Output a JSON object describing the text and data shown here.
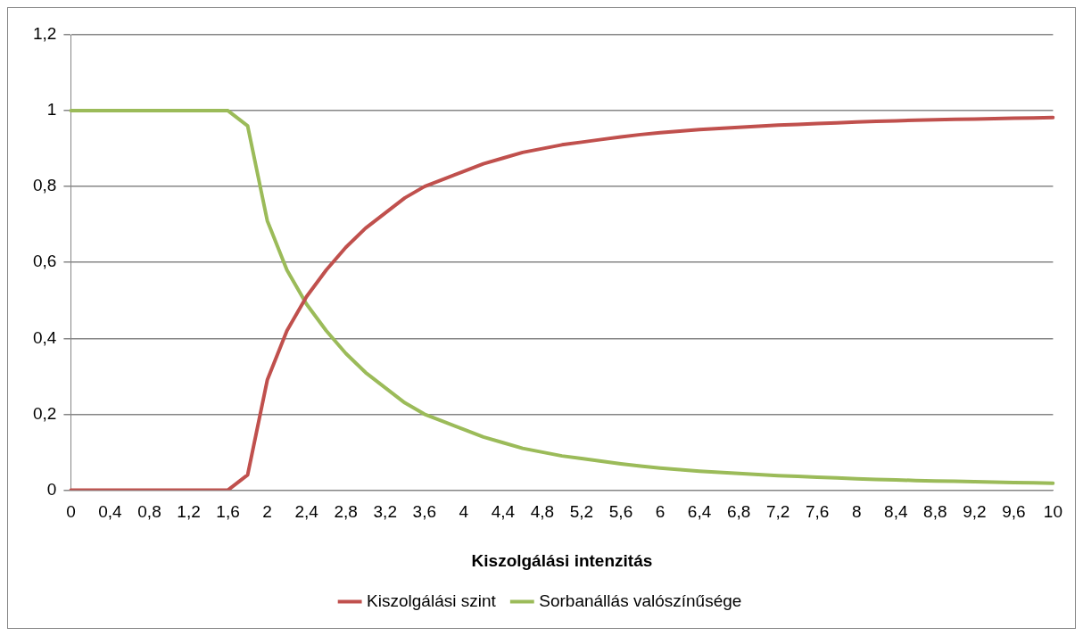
{
  "chart_data": {
    "type": "line",
    "xlabel": "Kiszolgálási intenzitás",
    "categories": [
      "0",
      null,
      "0,4",
      null,
      "0,8",
      null,
      "1,2",
      null,
      "1,6",
      null,
      "2",
      null,
      "2,4",
      null,
      "2,8",
      null,
      "3,2",
      null,
      "3,6",
      null,
      "4",
      null,
      "4,4",
      null,
      "4,8",
      null,
      "5,2",
      null,
      "5,6",
      null,
      "6",
      null,
      "6,4",
      null,
      "6,8",
      null,
      "7,2",
      null,
      "7,6",
      null,
      "8",
      null,
      "8,4",
      null,
      "8,8",
      null,
      "9,2",
      null,
      "9,6",
      null,
      "10"
    ],
    "series": [
      {
        "name": "Kiszolgálási szint",
        "color": "#c0504d",
        "values": [
          0,
          0,
          0,
          0,
          0,
          0,
          0,
          0,
          0,
          0.04,
          0.29,
          0.42,
          0.51,
          0.58,
          0.64,
          0.69,
          0.73,
          0.77,
          0.8,
          0.82,
          0.84,
          0.86,
          0.875,
          0.89,
          0.9,
          0.91,
          0.917,
          0.924,
          0.931,
          0.937,
          0.942,
          0.946,
          0.95,
          0.953,
          0.956,
          0.959,
          0.962,
          0.964,
          0.966,
          0.968,
          0.97,
          0.972,
          0.973,
          0.975,
          0.976,
          0.977,
          0.978,
          0.979,
          0.98,
          0.981,
          0.982
        ]
      },
      {
        "name": "Sorbanállás valószínűsége",
        "color": "#9bbb59",
        "values": [
          1,
          1,
          1,
          1,
          1,
          1,
          1,
          1,
          1,
          0.96,
          0.71,
          0.58,
          0.49,
          0.42,
          0.36,
          0.31,
          0.27,
          0.23,
          0.2,
          0.18,
          0.16,
          0.14,
          0.125,
          0.11,
          0.1,
          0.09,
          0.083,
          0.076,
          0.069,
          0.063,
          0.058,
          0.054,
          0.05,
          0.047,
          0.044,
          0.041,
          0.038,
          0.036,
          0.034,
          0.032,
          0.03,
          0.028,
          0.027,
          0.025,
          0.024,
          0.023,
          0.022,
          0.021,
          0.02,
          0.019,
          0.018
        ]
      }
    ],
    "ylim": [
      0,
      1.2
    ],
    "yticks": [
      0,
      {
        "value": 0.2,
        "label": "0,2"
      },
      {
        "value": 0.4,
        "label": "0,4"
      },
      {
        "value": 0.6,
        "label": "0,6"
      },
      {
        "value": 0.8,
        "label": "0,8"
      },
      1,
      {
        "value": 1.2,
        "label": "1,2"
      }
    ],
    "grid": "y",
    "legend": "bottom",
    "marker": "none",
    "line_style": "solid"
  }
}
